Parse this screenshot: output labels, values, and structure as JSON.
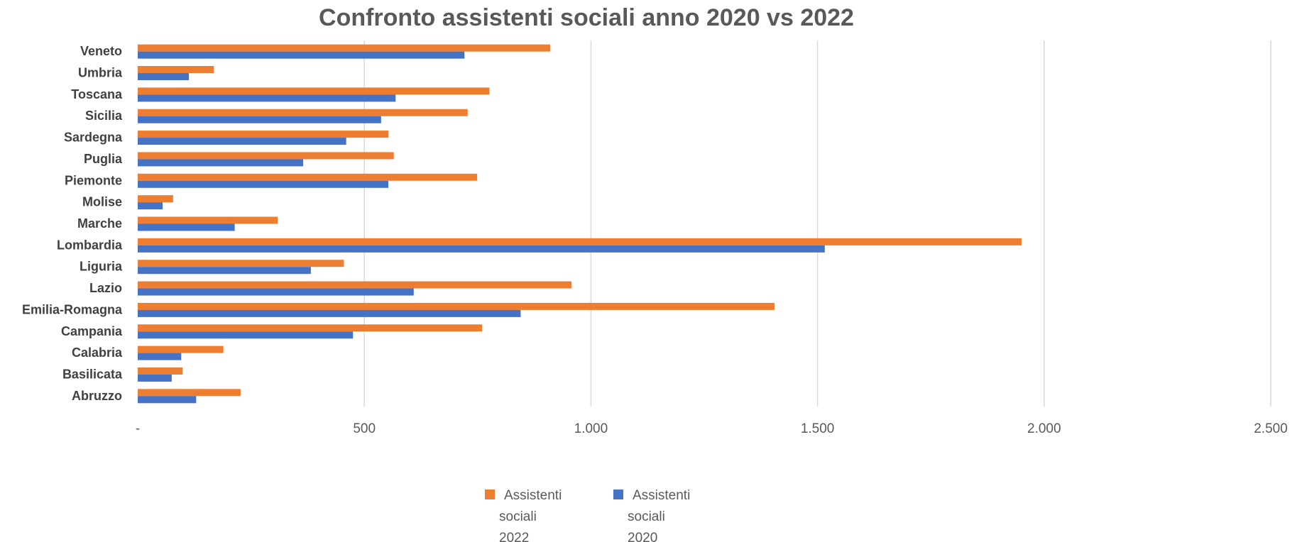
{
  "chart_data": {
    "type": "bar",
    "orientation": "horizontal",
    "title": "Confronto assistenti sociali anno 2020 vs 2022",
    "xlabel": "",
    "ylabel": "",
    "xlim": [
      0,
      2500
    ],
    "x_ticks": [
      {
        "value": 0,
        "label": "-"
      },
      {
        "value": 500,
        "label": "500"
      },
      {
        "value": 1000,
        "label": "1.000"
      },
      {
        "value": 1500,
        "label": "1.500"
      },
      {
        "value": 2000,
        "label": "2.000"
      },
      {
        "value": 2500,
        "label": "2.500"
      }
    ],
    "grid": true,
    "legend_position": "bottom",
    "categories": [
      "Veneto",
      "Umbria",
      "Toscana",
      "Sicilia",
      "Sardegna",
      "Puglia",
      "Piemonte",
      "Molise",
      "Marche",
      "Lombardia",
      "Liguria",
      "Lazio",
      "Emilia-Romagna",
      "Campania",
      "Calabria",
      "Basilicata",
      "Abruzzo"
    ],
    "series": [
      {
        "name": "Assistenti sociali 2022",
        "legend_lines": [
          "Assistenti",
          "sociali",
          "2022"
        ],
        "color": "#ed7d31",
        "values": [
          910,
          168,
          776,
          728,
          553,
          565,
          749,
          78,
          309,
          1950,
          455,
          957,
          1405,
          760,
          189,
          99,
          227
        ]
      },
      {
        "name": "Assistenti sociali 2020",
        "legend_lines": [
          "Assistenti",
          "sociali",
          "2020"
        ],
        "color": "#4472c4",
        "values": [
          721,
          113,
          569,
          537,
          460,
          365,
          553,
          55,
          214,
          1516,
          382,
          609,
          845,
          475,
          96,
          75,
          129
        ]
      }
    ]
  }
}
